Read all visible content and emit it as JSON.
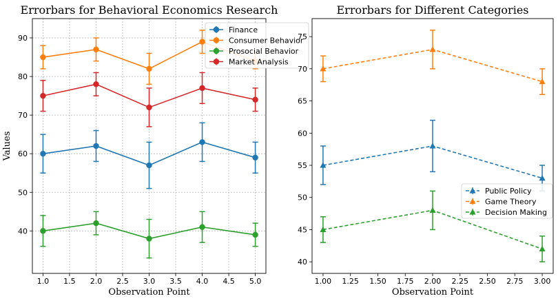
{
  "chart_data": [
    {
      "type": "line",
      "title": "Errorbars for Behavioral Economics Research",
      "xlabel": "Observation Point",
      "ylabel": "Values",
      "x": [
        1,
        2,
        3,
        4,
        5
      ],
      "xlim": [
        0.8,
        5.2
      ],
      "ylim": [
        29,
        95
      ],
      "xticks": [
        1.0,
        1.5,
        2.0,
        2.5,
        3.0,
        3.5,
        4.0,
        4.5,
        5.0
      ],
      "xtick_labels": [
        "1.0",
        "1.5",
        "2.0",
        "2.5",
        "3.0",
        "3.5",
        "4.0",
        "4.5",
        "5.0"
      ],
      "yticks": [
        40,
        50,
        60,
        70,
        80,
        90
      ],
      "ytick_labels": [
        "40",
        "50",
        "60",
        "70",
        "80",
        "90"
      ],
      "grid": true,
      "legend_position": "top-right",
      "series": [
        {
          "name": "Finance",
          "color": "#1f77b4",
          "marker": "circle",
          "dash": "solid",
          "values": [
            60,
            62,
            57,
            63,
            59
          ],
          "errors": [
            5,
            4,
            6,
            5,
            4
          ]
        },
        {
          "name": "Consumer Behavior",
          "color": "#ff7f0e",
          "marker": "circle",
          "dash": "solid",
          "values": [
            85,
            87,
            82,
            89,
            84
          ],
          "errors": [
            3,
            3,
            4,
            3,
            2
          ]
        },
        {
          "name": "Prosocial Behavior",
          "color": "#2ca02c",
          "marker": "circle",
          "dash": "solid",
          "values": [
            40,
            42,
            38,
            41,
            39
          ],
          "errors": [
            4,
            3,
            5,
            4,
            3
          ]
        },
        {
          "name": "Market Analysis",
          "color": "#d62728",
          "marker": "circle",
          "dash": "solid",
          "values": [
            75,
            78,
            72,
            77,
            74
          ],
          "errors": [
            4,
            3,
            5,
            4,
            3
          ]
        }
      ]
    },
    {
      "type": "line",
      "title": "Errorbars for Different Categories",
      "xlabel": "Observation Point",
      "ylabel": "",
      "x": [
        1,
        2,
        3
      ],
      "xlim": [
        0.9,
        3.1
      ],
      "ylim": [
        38.2,
        77.8
      ],
      "xticks": [
        1.0,
        1.25,
        1.5,
        1.75,
        2.0,
        2.25,
        2.5,
        2.75,
        3.0
      ],
      "xtick_labels": [
        "1.00",
        "1.25",
        "1.50",
        "1.75",
        "2.00",
        "2.25",
        "2.50",
        "2.75",
        "3.00"
      ],
      "yticks": [
        40,
        45,
        50,
        55,
        60,
        65,
        70,
        75
      ],
      "ytick_labels": [
        "40",
        "45",
        "50",
        "55",
        "60",
        "65",
        "70",
        "75"
      ],
      "grid": false,
      "legend_position": "center-right",
      "series": [
        {
          "name": "Public Policy",
          "color": "#1f77b4",
          "marker": "triangle",
          "dash": "dashed",
          "values": [
            55,
            58,
            53
          ],
          "errors": [
            3,
            4,
            2
          ]
        },
        {
          "name": "Game Theory",
          "color": "#ff7f0e",
          "marker": "triangle",
          "dash": "dashed",
          "values": [
            70,
            73,
            68
          ],
          "errors": [
            2,
            3,
            2
          ]
        },
        {
          "name": "Decision Making",
          "color": "#2ca02c",
          "marker": "triangle",
          "dash": "dashed",
          "values": [
            45,
            48,
            42
          ],
          "errors": [
            2,
            3,
            2
          ]
        }
      ]
    }
  ]
}
